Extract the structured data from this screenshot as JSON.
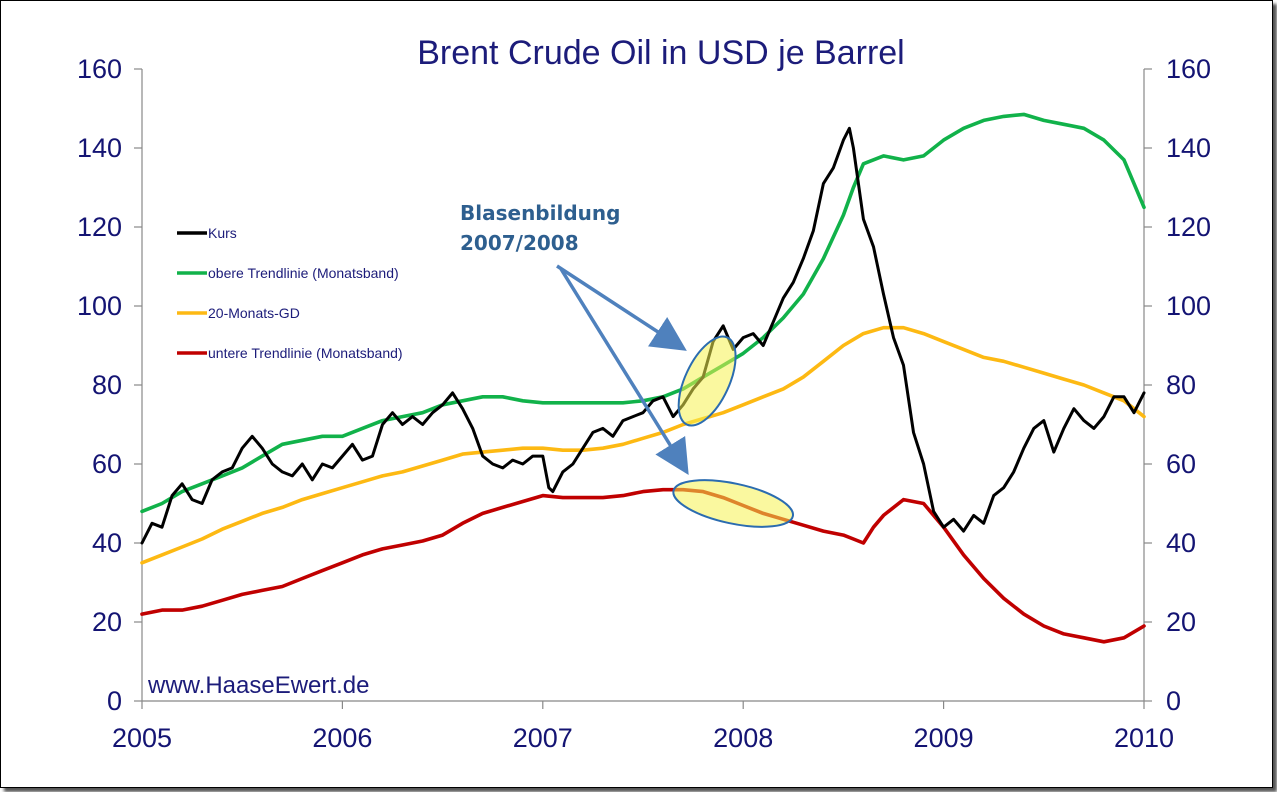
{
  "chart_data": {
    "type": "line",
    "title": "Brent Crude Oil in USD je Barrel",
    "xlabel": "",
    "ylabel": "",
    "x_ticks": [
      "2005",
      "2006",
      "2007",
      "2008",
      "2009",
      "2010"
    ],
    "xlim": [
      2005,
      2010
    ],
    "y_ticks": [
      "0",
      "20",
      "40",
      "60",
      "80",
      "100",
      "120",
      "140",
      "160"
    ],
    "ylim": [
      0,
      160
    ],
    "secondary_y_ticks": [
      "0",
      "20",
      "40",
      "60",
      "80",
      "100",
      "120",
      "140",
      "160"
    ],
    "grid": false,
    "legend_position": "left",
    "series": [
      {
        "name": "Kurs",
        "color": "#000000",
        "x": [
          2005.0,
          2005.05,
          2005.1,
          2005.15,
          2005.2,
          2005.25,
          2005.3,
          2005.35,
          2005.4,
          2005.45,
          2005.5,
          2005.55,
          2005.6,
          2005.65,
          2005.7,
          2005.75,
          2005.8,
          2005.85,
          2005.9,
          2005.95,
          2006.0,
          2006.05,
          2006.1,
          2006.15,
          2006.2,
          2006.25,
          2006.3,
          2006.35,
          2006.4,
          2006.45,
          2006.5,
          2006.55,
          2006.6,
          2006.65,
          2006.7,
          2006.75,
          2006.8,
          2006.85,
          2006.9,
          2006.95,
          2007.0,
          2007.03,
          2007.05,
          2007.1,
          2007.15,
          2007.2,
          2007.25,
          2007.3,
          2007.35,
          2007.4,
          2007.45,
          2007.5,
          2007.55,
          2007.6,
          2007.65,
          2007.7,
          2007.75,
          2007.8,
          2007.85,
          2007.9,
          2007.95,
          2008.0,
          2008.05,
          2008.1,
          2008.15,
          2008.2,
          2008.25,
          2008.3,
          2008.35,
          2008.4,
          2008.45,
          2008.5,
          2008.53,
          2008.55,
          2008.6,
          2008.65,
          2008.7,
          2008.75,
          2008.8,
          2008.85,
          2008.9,
          2008.95,
          2009.0,
          2009.05,
          2009.1,
          2009.15,
          2009.2,
          2009.25,
          2009.3,
          2009.35,
          2009.4,
          2009.45,
          2009.5,
          2009.55,
          2009.6,
          2009.65,
          2009.7,
          2009.75,
          2009.8,
          2009.85,
          2009.9,
          2009.95,
          2010.0
        ],
        "values": [
          40,
          45,
          44,
          52,
          55,
          51,
          50,
          56,
          58,
          59,
          64,
          67,
          64,
          60,
          58,
          57,
          60,
          56,
          60,
          59,
          62,
          65,
          61,
          62,
          70,
          73,
          70,
          72,
          70,
          73,
          75,
          78,
          74,
          69,
          62,
          60,
          59,
          61,
          60,
          62,
          62,
          54,
          53,
          58,
          60,
          64,
          68,
          69,
          67,
          71,
          72,
          73,
          76,
          77,
          72,
          75,
          79,
          82,
          91,
          95,
          89,
          92,
          93,
          90,
          96,
          102,
          106,
          112,
          119,
          131,
          135,
          142,
          145,
          140,
          122,
          115,
          103,
          92,
          85,
          68,
          60,
          48,
          44,
          46,
          43,
          47,
          45,
          52,
          54,
          58,
          64,
          69,
          71,
          63,
          69,
          74,
          71,
          69,
          72,
          77,
          77,
          73,
          78
        ]
      },
      {
        "name": "obere Trendlinie (Monatsband)",
        "color": "#11b24a",
        "x": [
          2005.0,
          2005.1,
          2005.2,
          2005.3,
          2005.4,
          2005.5,
          2005.6,
          2005.7,
          2005.8,
          2005.9,
          2006.0,
          2006.1,
          2006.2,
          2006.3,
          2006.4,
          2006.5,
          2006.6,
          2006.7,
          2006.8,
          2006.9,
          2007.0,
          2007.1,
          2007.2,
          2007.3,
          2007.4,
          2007.5,
          2007.6,
          2007.7,
          2007.8,
          2007.9,
          2008.0,
          2008.1,
          2008.2,
          2008.3,
          2008.4,
          2008.5,
          2008.55,
          2008.6,
          2008.7,
          2008.8,
          2008.9,
          2009.0,
          2009.1,
          2009.2,
          2009.3,
          2009.4,
          2009.5,
          2009.6,
          2009.7,
          2009.8,
          2009.9,
          2009.95,
          2010.0
        ],
        "values": [
          48,
          50,
          53,
          55,
          57,
          59,
          62,
          65,
          66,
          67,
          67,
          69,
          71,
          72,
          73,
          75,
          76,
          77,
          77,
          76,
          75.5,
          75.5,
          75.5,
          75.5,
          75.5,
          76,
          77,
          79,
          82,
          85,
          88,
          92,
          97,
          103,
          112,
          123,
          130,
          136,
          138,
          137,
          138,
          142,
          145,
          147,
          148,
          148.5,
          147,
          146,
          145,
          142,
          137,
          131,
          125
        ]
      },
      {
        "name": "20-Monats-GD",
        "color": "#fdb913",
        "x": [
          2005.0,
          2005.1,
          2005.2,
          2005.3,
          2005.4,
          2005.5,
          2005.6,
          2005.7,
          2005.8,
          2005.9,
          2006.0,
          2006.1,
          2006.2,
          2006.3,
          2006.4,
          2006.5,
          2006.6,
          2006.7,
          2006.8,
          2006.9,
          2007.0,
          2007.1,
          2007.2,
          2007.3,
          2007.4,
          2007.5,
          2007.6,
          2007.7,
          2007.8,
          2007.9,
          2008.0,
          2008.1,
          2008.2,
          2008.3,
          2008.4,
          2008.5,
          2008.6,
          2008.7,
          2008.8,
          2008.9,
          2009.0,
          2009.1,
          2009.2,
          2009.3,
          2009.4,
          2009.5,
          2009.6,
          2009.7,
          2009.8,
          2009.9,
          2010.0
        ],
        "values": [
          35,
          37,
          39,
          41,
          43.5,
          45.5,
          47.5,
          49,
          51,
          52.5,
          54,
          55.5,
          57,
          58,
          59.5,
          61,
          62.5,
          63,
          63.5,
          64,
          64,
          63.5,
          63.5,
          64,
          65,
          66.5,
          68,
          70,
          71.5,
          73,
          75,
          77,
          79,
          82,
          86,
          90,
          93,
          94.5,
          94.5,
          93,
          91,
          89,
          87,
          86,
          84.5,
          83,
          81.5,
          80,
          78,
          76,
          72
        ]
      },
      {
        "name": "untere Trendlinie (Monatsband)",
        "color": "#c00000",
        "x": [
          2005.0,
          2005.1,
          2005.2,
          2005.3,
          2005.4,
          2005.5,
          2005.6,
          2005.7,
          2005.8,
          2005.9,
          2006.0,
          2006.1,
          2006.2,
          2006.3,
          2006.4,
          2006.5,
          2006.6,
          2006.7,
          2006.8,
          2006.9,
          2007.0,
          2007.1,
          2007.2,
          2007.3,
          2007.4,
          2007.5,
          2007.6,
          2007.7,
          2007.8,
          2007.9,
          2008.0,
          2008.1,
          2008.2,
          2008.3,
          2008.4,
          2008.5,
          2008.55,
          2008.6,
          2008.65,
          2008.7,
          2008.8,
          2008.9,
          2009.0,
          2009.1,
          2009.2,
          2009.3,
          2009.4,
          2009.5,
          2009.6,
          2009.7,
          2009.8,
          2009.9,
          2010.0
        ],
        "values": [
          22,
          23,
          23,
          24,
          25.5,
          27,
          28,
          29,
          31,
          33,
          35,
          37,
          38.5,
          39.5,
          40.5,
          42,
          45,
          47.5,
          49,
          50.5,
          52,
          51.5,
          51.5,
          51.5,
          52,
          53,
          53.5,
          53.5,
          53,
          51.5,
          49.5,
          47.5,
          46,
          44.5,
          43,
          42,
          41,
          40,
          44,
          47,
          51,
          50,
          44,
          37,
          31,
          26,
          22,
          19,
          17,
          16,
          15,
          16,
          19
        ]
      }
    ],
    "annotations": {
      "line1": "Blasenbildung",
      "line2": "2007/2008"
    },
    "watermark": "www.HaaseEwert.de"
  }
}
